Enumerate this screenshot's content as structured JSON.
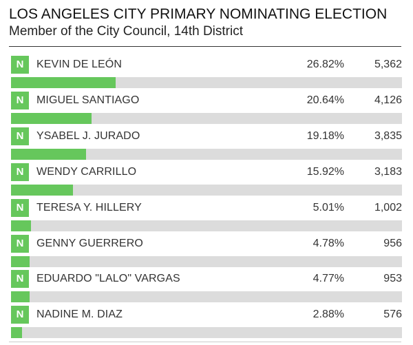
{
  "header": {
    "title": "LOS ANGELES CITY PRIMARY NOMINATING ELECTION",
    "subtitle": "Member of the City Council, 14th District"
  },
  "chart_data": {
    "type": "bar",
    "title": "LOS ANGELES CITY PRIMARY NOMINATING ELECTION",
    "subtitle": "Member of the City Council, 14th District",
    "xlim": [
      0,
      100
    ],
    "rows": [
      {
        "badge": "N",
        "name": "KEVIN DE LEÓN",
        "pct": 26.82,
        "pct_label": "26.82%",
        "votes": 5362,
        "votes_label": "5,362"
      },
      {
        "badge": "N",
        "name": "MIGUEL SANTIAGO",
        "pct": 20.64,
        "pct_label": "20.64%",
        "votes": 4126,
        "votes_label": "4,126"
      },
      {
        "badge": "N",
        "name": "YSABEL J. JURADO",
        "pct": 19.18,
        "pct_label": "19.18%",
        "votes": 3835,
        "votes_label": "3,835"
      },
      {
        "badge": "N",
        "name": "WENDY CARRILLO",
        "pct": 15.92,
        "pct_label": "15.92%",
        "votes": 3183,
        "votes_label": "3,183"
      },
      {
        "badge": "N",
        "name": "TERESA Y. HILLERY",
        "pct": 5.01,
        "pct_label": "5.01%",
        "votes": 1002,
        "votes_label": "1,002"
      },
      {
        "badge": "N",
        "name": "GENNY GUERRERO",
        "pct": 4.78,
        "pct_label": "4.78%",
        "votes": 956,
        "votes_label": "956"
      },
      {
        "badge": "N",
        "name": "EDUARDO \"LALO\" VARGAS",
        "pct": 4.77,
        "pct_label": "4.77%",
        "votes": 953,
        "votes_label": "953"
      },
      {
        "badge": "N",
        "name": "NADINE M. DIAZ",
        "pct": 2.88,
        "pct_label": "2.88%",
        "votes": 576,
        "votes_label": "576"
      }
    ]
  },
  "colors": {
    "accent_green": "#66c75c",
    "bar_track": "#dcdcdc"
  }
}
